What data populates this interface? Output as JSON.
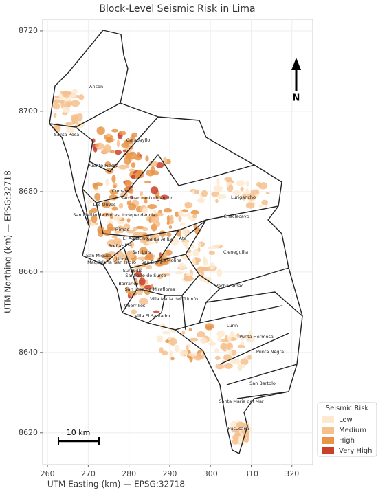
{
  "title": "Block-Level Seismic Risk in Lima",
  "x_axis": {
    "label": "UTM Easting (km) — EPSG:32718",
    "lim": [
      258.8,
      325.1
    ],
    "ticks": [
      260,
      270,
      280,
      290,
      300,
      310,
      320
    ]
  },
  "y_axis": {
    "label": "UTM Northing (km) — EPSG:32718",
    "lim": [
      8612.1,
      8722.9
    ],
    "ticks": [
      8620,
      8640,
      8660,
      8680,
      8700,
      8720
    ]
  },
  "north_arrow": "N",
  "scale_bar": "10 km",
  "districts": [
    "Ancon",
    "Santa Rosa",
    "Carabayllo",
    "Puente Piedra",
    "Comas",
    "San Juan de Lurigancho",
    "Los Olivos",
    "Lurigancho",
    "San Martin de Porres",
    "Independencia",
    "Chaclacayo",
    "Rimac",
    "El Agustino",
    "Santa Anita",
    "Ate",
    "Breña",
    "Lima",
    "San Luis",
    "San Miguel",
    "Lince",
    "Magdalena",
    "San Isidro",
    "San Borja",
    "La Molina",
    "Cieneguilla",
    "Surquillo",
    "Santiago de Surco",
    "Barranco",
    "San Juan de Miraflores",
    "Pachacamac",
    "Villa Maria del Triunfo",
    "Chorrillos",
    "Villa El Salvador",
    "Lurin",
    "Punta Hermosa",
    "Punta Negra",
    "San Bartolo",
    "Santa Maria del Mar",
    "Pucusana"
  ],
  "legend": {
    "title": "Seismic Risk",
    "items": [
      {
        "label": "Low",
        "color": "#fde9cf"
      },
      {
        "label": "Medium",
        "color": "#f4c08d"
      },
      {
        "label": "High",
        "color": "#e8954a"
      },
      {
        "label": "Very High",
        "color": "#c9412d"
      }
    ]
  }
}
